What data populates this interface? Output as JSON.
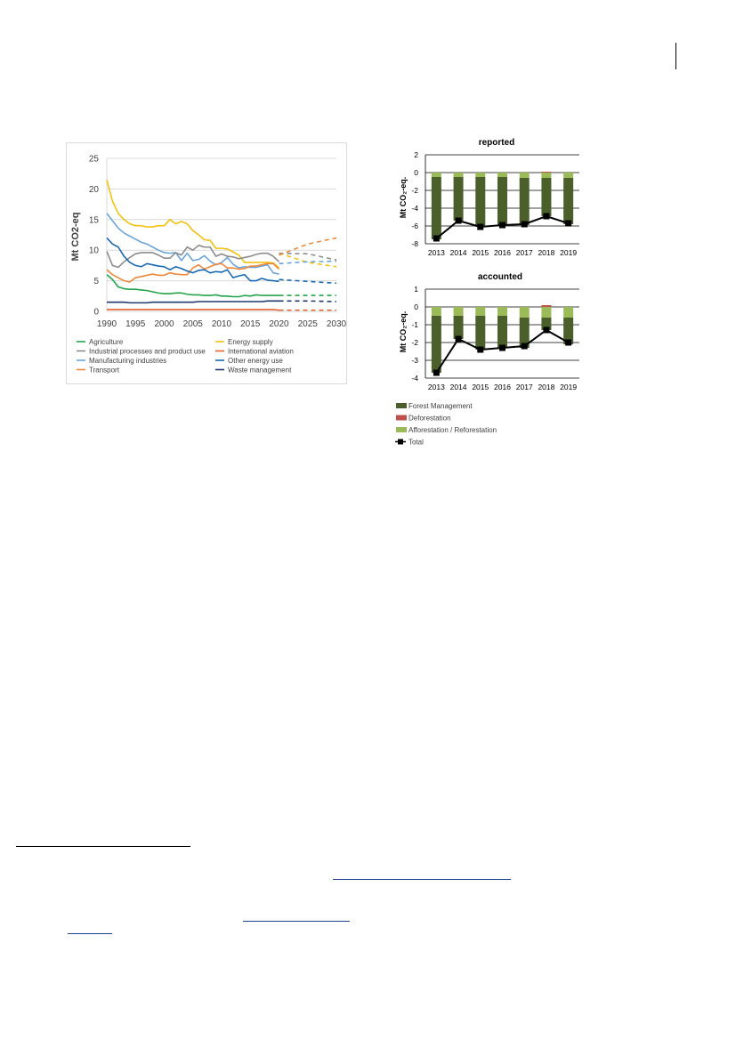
{
  "colors": {
    "agriculture": "#22a34a",
    "energy_supply": "#f2c20f",
    "industrial": "#8c8c8c",
    "intl_aviation": "#e2622b",
    "manufacturing": "#6aa5d9",
    "other_energy": "#1868b3",
    "transport": "#f0883b",
    "waste": "#1f3a6e",
    "forest_mgmt": "#4b5f2b",
    "deforestation": "#c0504d",
    "afforestation": "#9bbb59",
    "total": "#000000"
  },
  "chart_data": [
    {
      "id": "emissions",
      "type": "line",
      "ylabel": "Mt CO2-eq",
      "ylim": [
        0,
        25
      ],
      "yticks": [
        0,
        5,
        10,
        15,
        20,
        25
      ],
      "xlim": [
        1990,
        2030
      ],
      "xticks": [
        1990,
        1995,
        2000,
        2005,
        2010,
        2015,
        2020,
        2025,
        2030
      ],
      "grid": true,
      "legend_position": "bottom",
      "historic_years": [
        1990,
        1991,
        1992,
        1993,
        1994,
        1995,
        1996,
        1997,
        1998,
        1999,
        2000,
        2001,
        2002,
        2003,
        2004,
        2005,
        2006,
        2007,
        2008,
        2009,
        2010,
        2011,
        2012,
        2013,
        2014,
        2015,
        2016,
        2017,
        2018,
        2019,
        2020
      ],
      "projection_years": [
        2020,
        2025,
        2030
      ],
      "series": [
        {
          "key": "energy_supply",
          "name": "Energy supply",
          "values": [
            21.5,
            18,
            16,
            15,
            14.3,
            14,
            14,
            13.8,
            13.8,
            14,
            14,
            15,
            14.3,
            14.7,
            14.3,
            13.2,
            12.5,
            11.7,
            11.6,
            10.3,
            10.3,
            10.2,
            9.7,
            9.2,
            8,
            8,
            8,
            8,
            8,
            7.9,
            7.1
          ],
          "projection": [
            9.5,
            8,
            7.3
          ]
        },
        {
          "key": "manufacturing",
          "name": "Manufacturing industries",
          "values": [
            16,
            14.8,
            13.6,
            12.8,
            12.3,
            11.8,
            11.3,
            11,
            10.5,
            10,
            9.6,
            9.5,
            9.6,
            8.3,
            9.5,
            8.3,
            8.5,
            9.1,
            8.2,
            7.6,
            8,
            8.8,
            7.7,
            7.1,
            7.3,
            7.2,
            7.2,
            7.4,
            7.6,
            6.3,
            6.1
          ],
          "projection": [
            7.8,
            8.1,
            8.2
          ]
        },
        {
          "key": "industrial",
          "name": "Industrial processes and product use",
          "values": [
            9.8,
            7.5,
            7.2,
            8.1,
            8.8,
            9.4,
            9.6,
            9.6,
            9.6,
            9.2,
            8.7,
            8.7,
            9.6,
            9.2,
            10.5,
            10,
            10.8,
            10.5,
            10.5,
            9,
            9.4,
            9,
            8.9,
            8.6,
            8.8,
            9,
            9.3,
            9.5,
            9.5,
            9,
            8.1
          ],
          "projection": [
            9.5,
            9.4,
            8.4
          ]
        },
        {
          "key": "transport",
          "name": "Transport",
          "values": [
            6.8,
            6,
            5.5,
            5,
            4.8,
            5.5,
            5.7,
            5.9,
            6.1,
            5.9,
            5.9,
            6.3,
            6.1,
            6,
            6,
            7.1,
            7.6,
            6.9,
            7.3,
            7.7,
            7.8,
            7.1,
            7.1,
            6.9,
            7,
            7.4,
            7.4,
            7.6,
            7.8,
            7.8,
            6.9
          ],
          "projection": [
            9.2,
            11,
            12
          ]
        },
        {
          "key": "other_energy",
          "name": "Other energy use",
          "values": [
            12,
            11,
            10.5,
            9,
            8,
            7.5,
            7.3,
            7.8,
            7.6,
            7.4,
            7.3,
            6.8,
            7.3,
            7,
            6.6,
            6.3,
            6.7,
            6.8,
            6.3,
            6.5,
            6.4,
            6.8,
            5.5,
            5.8,
            6,
            5,
            5,
            5.4,
            5.1,
            5,
            4.9
          ],
          "projection": [
            5.2,
            4.9,
            4.6
          ]
        },
        {
          "key": "agriculture",
          "name": "Agriculture",
          "values": [
            6,
            5.2,
            4,
            3.7,
            3.6,
            3.6,
            3.5,
            3.4,
            3.2,
            3,
            2.9,
            2.9,
            3,
            3,
            2.8,
            2.7,
            2.7,
            2.6,
            2.6,
            2.7,
            2.5,
            2.5,
            2.4,
            2.4,
            2.6,
            2.5,
            2.7,
            2.6,
            2.6,
            2.6,
            2.6
          ],
          "projection": [
            2.6,
            2.6,
            2.6
          ]
        },
        {
          "key": "waste",
          "name": "Waste management",
          "values": [
            1.5,
            1.5,
            1.5,
            1.5,
            1.4,
            1.4,
            1.4,
            1.4,
            1.5,
            1.5,
            1.5,
            1.5,
            1.5,
            1.5,
            1.5,
            1.5,
            1.6,
            1.6,
            1.6,
            1.6,
            1.6,
            1.6,
            1.6,
            1.6,
            1.6,
            1.6,
            1.6,
            1.6,
            1.7,
            1.7,
            1.7
          ],
          "projection": [
            1.7,
            1.7,
            1.6
          ]
        },
        {
          "key": "intl_aviation",
          "name": "International aviation",
          "values": [
            0.3,
            0.3,
            0.3,
            0.3,
            0.3,
            0.3,
            0.3,
            0.3,
            0.3,
            0.3,
            0.3,
            0.3,
            0.3,
            0.3,
            0.3,
            0.3,
            0.3,
            0.3,
            0.3,
            0.3,
            0.3,
            0.3,
            0.3,
            0.3,
            0.3,
            0.3,
            0.3,
            0.3,
            0.3,
            0.3,
            0.2
          ],
          "projection": [
            0.2,
            0.2,
            0.2
          ]
        }
      ],
      "legend": [
        {
          "key": "agriculture",
          "label": "Agriculture"
        },
        {
          "key": "energy_supply",
          "label": "Energy supply"
        },
        {
          "key": "industrial",
          "label": "Industrial processes and product use"
        },
        {
          "key": "intl_aviation",
          "label": "International aviation"
        },
        {
          "key": "manufacturing",
          "label": "Manufacturing industries"
        },
        {
          "key": "other_energy",
          "label": "Other energy use"
        },
        {
          "key": "transport",
          "label": "Transport"
        },
        {
          "key": "waste",
          "label": "Waste management"
        }
      ]
    },
    {
      "id": "reported",
      "type": "bar",
      "title": "reported",
      "ylabel": "Mt CO₂-eq.",
      "ylim": [
        -8,
        2
      ],
      "yticks": [
        -8,
        -6,
        -4,
        -2,
        0,
        2
      ],
      "grid": true,
      "categories": [
        "2013",
        "2014",
        "2015",
        "2016",
        "2017",
        "2018",
        "2019"
      ],
      "series": [
        {
          "key": "afforestation",
          "name": "Afforestation / Reforestation",
          "values": [
            -0.5,
            -0.5,
            -0.5,
            -0.5,
            -0.6,
            -0.6,
            -0.6
          ]
        },
        {
          "key": "forest_mgmt",
          "name": "Forest Management",
          "values": [
            -7.0,
            -4.9,
            -5.6,
            -5.4,
            -5.3,
            -4.3,
            -5.2
          ]
        },
        {
          "key": "deforestation",
          "name": "Deforestation",
          "values": [
            0,
            0,
            0,
            0,
            0,
            0.1,
            0
          ]
        },
        {
          "key": "total",
          "name": "Total",
          "values": [
            -7.4,
            -5.4,
            -6.1,
            -5.9,
            -5.8,
            -4.9,
            -5.7
          ]
        }
      ]
    },
    {
      "id": "accounted",
      "type": "bar",
      "title": "accounted",
      "ylabel": "Mt CO₂-eq.",
      "ylim": [
        -4,
        1
      ],
      "yticks": [
        -4,
        -3,
        -2,
        -1,
        0,
        1
      ],
      "grid": true,
      "categories": [
        "2013",
        "2014",
        "2015",
        "2016",
        "2017",
        "2018",
        "2019"
      ],
      "series": [
        {
          "key": "afforestation",
          "name": "Afforestation / Reforestation",
          "values": [
            -0.5,
            -0.5,
            -0.5,
            -0.5,
            -0.6,
            -0.6,
            -0.6
          ]
        },
        {
          "key": "forest_mgmt",
          "name": "Forest Management",
          "values": [
            -3.2,
            -1.3,
            -1.9,
            -1.8,
            -1.7,
            -0.7,
            -1.5
          ]
        },
        {
          "key": "deforestation",
          "name": "Deforestation",
          "values": [
            0,
            0,
            0,
            0,
            0,
            0.1,
            0
          ]
        },
        {
          "key": "total",
          "name": "Total",
          "values": [
            -3.7,
            -1.8,
            -2.4,
            -2.3,
            -2.2,
            -1.3,
            -2.0
          ]
        }
      ],
      "legend": [
        {
          "key": "forest_mgmt",
          "label": "Forest Management"
        },
        {
          "key": "deforestation",
          "label": "Deforestation"
        },
        {
          "key": "afforestation",
          "label": "Afforestation / Reforestation"
        },
        {
          "key": "total",
          "label": "Total"
        }
      ]
    }
  ]
}
